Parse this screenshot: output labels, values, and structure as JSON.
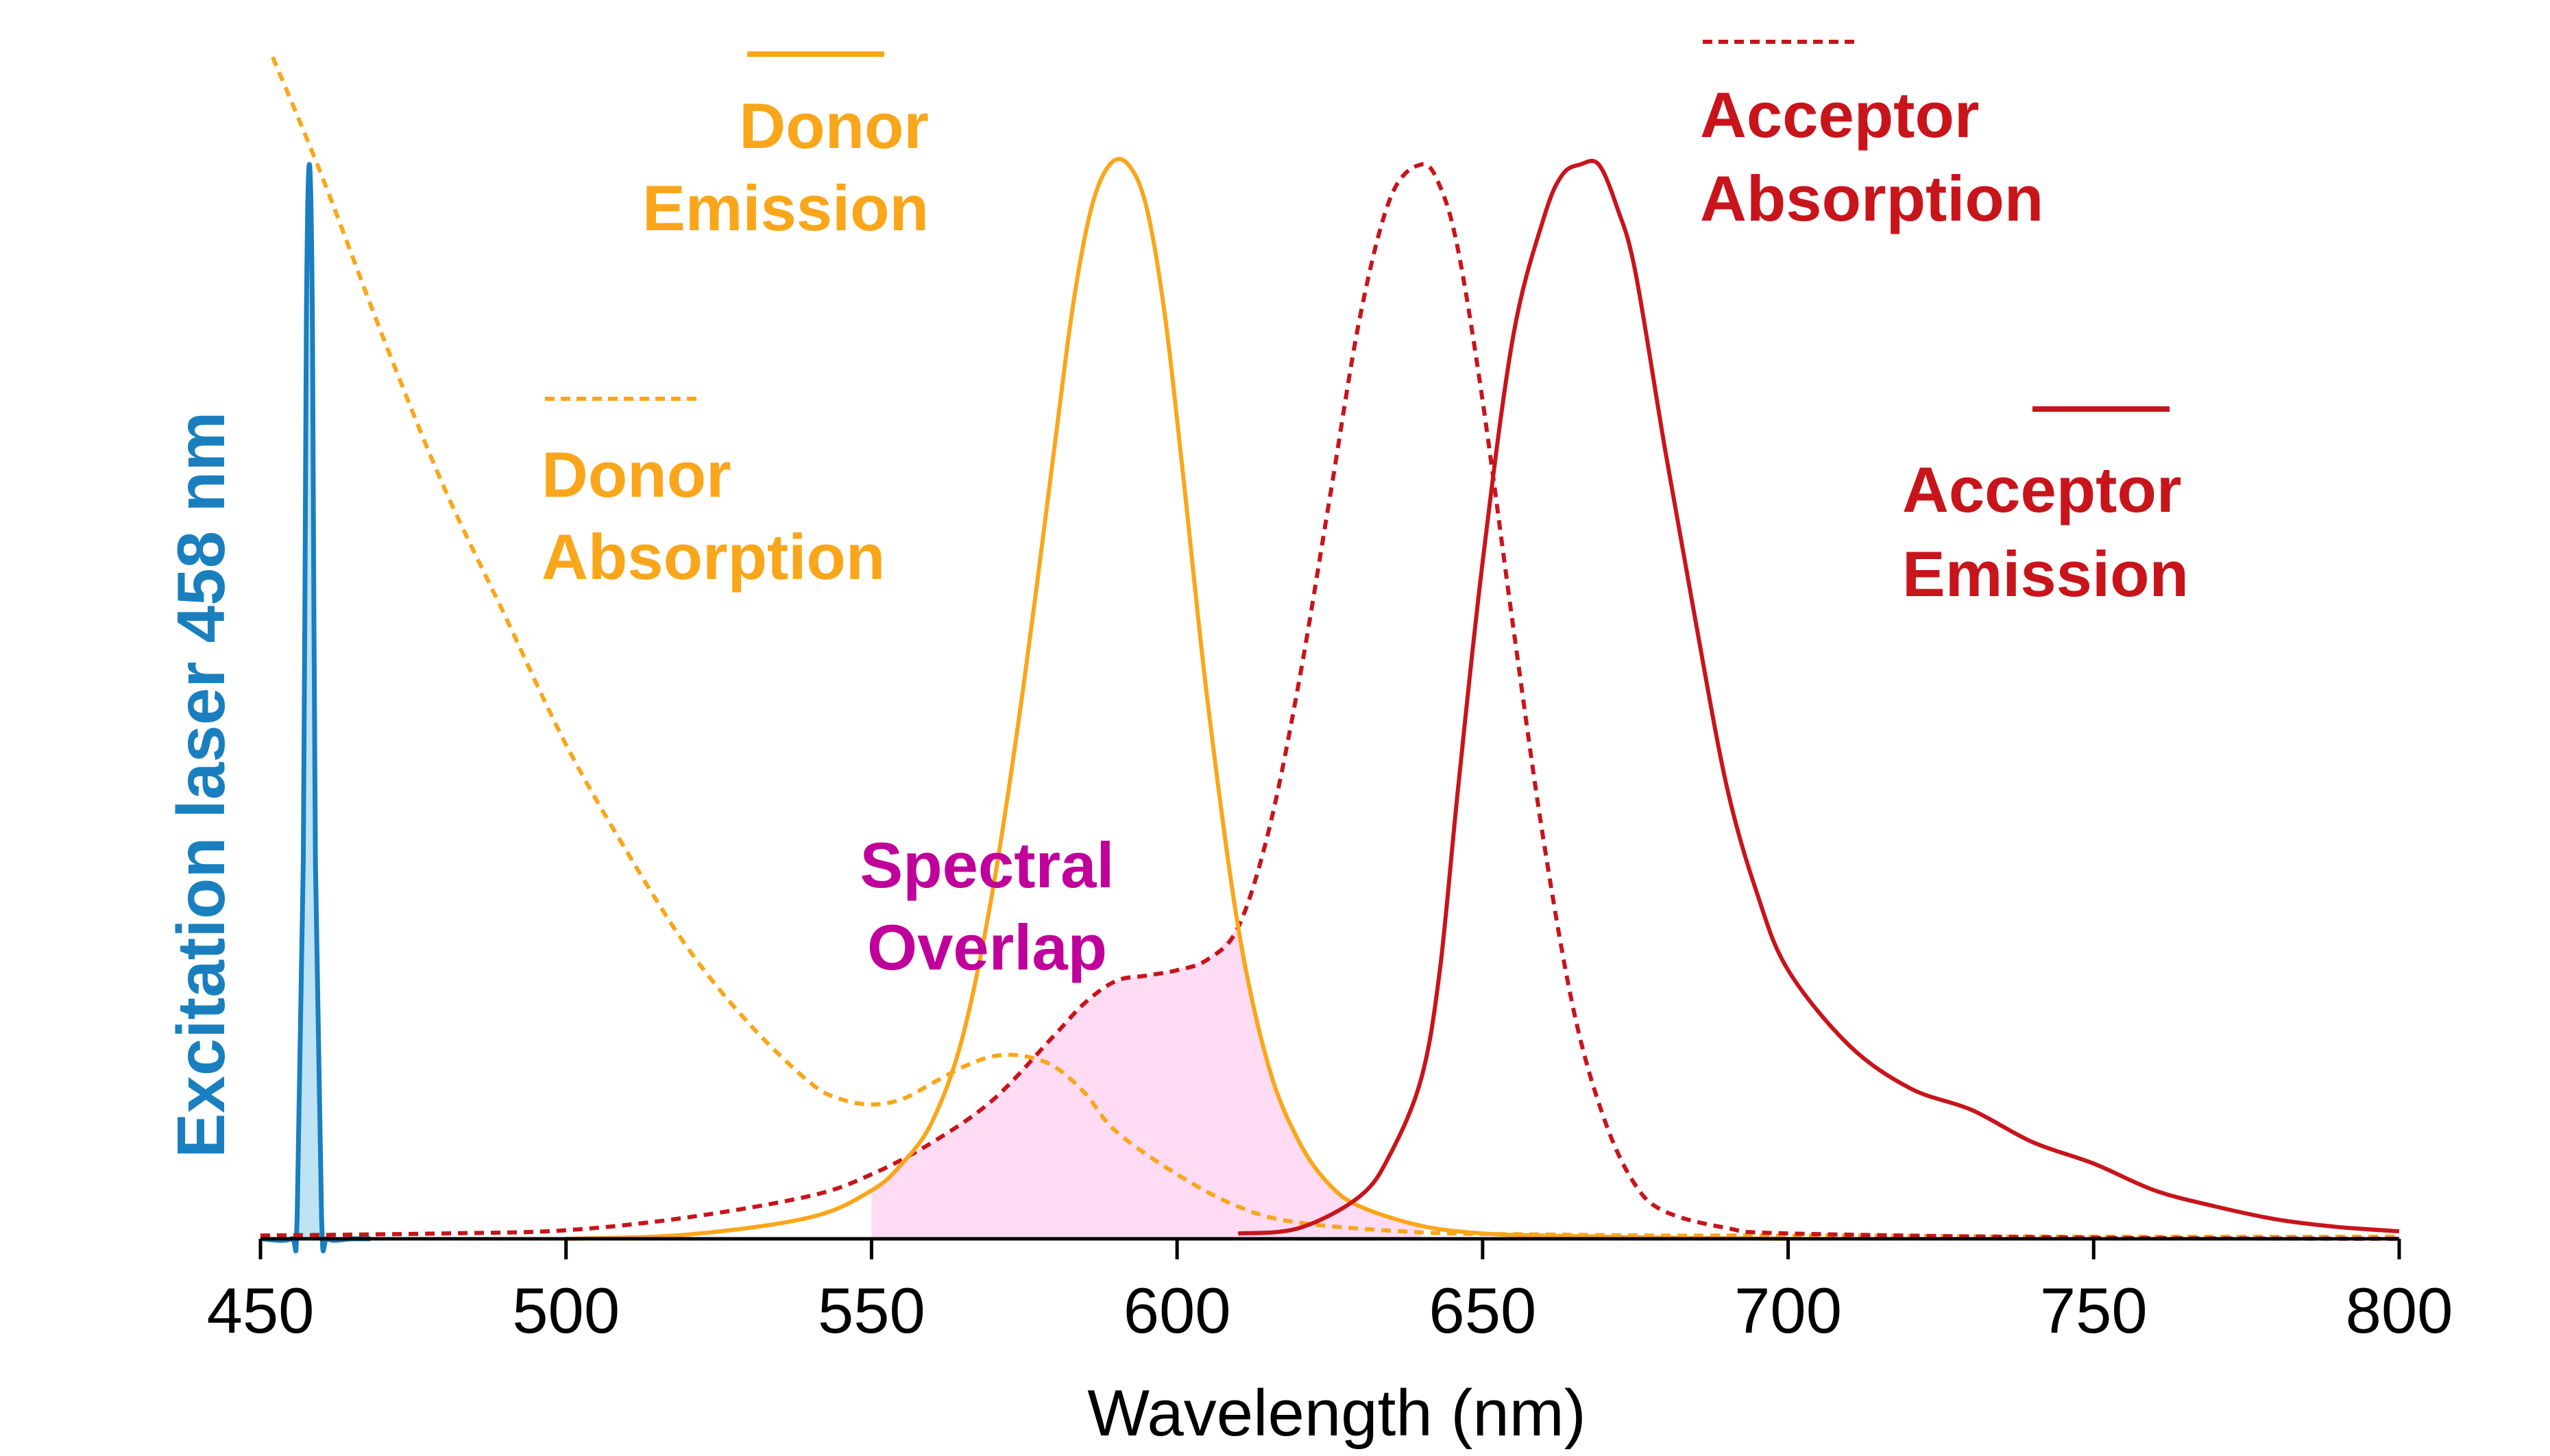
{
  "chart_data": {
    "type": "line",
    "title": "",
    "xlabel": "Wavelength (nm)",
    "ylabel": "Excitation laser 458 nm",
    "xlim": [
      450,
      800
    ],
    "ylim": [
      0,
      1
    ],
    "x_ticks": [
      450,
      500,
      550,
      600,
      650,
      700,
      750,
      800
    ],
    "grid": false,
    "colors": {
      "donor": "#FAA61A",
      "acceptor": "#C8141B",
      "laser": "#1A7FBE",
      "laser_fill": "#BDE3F5",
      "overlap_fill": "#FFDCF4",
      "overlap_text": "#C0009A",
      "axis": "#000000"
    },
    "labels": {
      "donor_emission": [
        "Donor",
        "Emission"
      ],
      "donor_absorption": [
        "Donor",
        "Absorption"
      ],
      "acceptor_absorption": [
        "Acceptor",
        "Absorption"
      ],
      "acceptor_emission": [
        "Acceptor",
        "Emission"
      ],
      "overlap": [
        "Spectral",
        "Overlap"
      ]
    },
    "series": [
      {
        "name": "Excitation laser 458 nm",
        "style": "solid-filled",
        "color_key": "laser",
        "x": [
          450,
          455,
          456,
          457,
          457.5,
          458,
          458.5,
          459,
          460,
          461,
          465,
          468
        ],
        "y": [
          0,
          0,
          0.02,
          0.35,
          0.85,
          1.0,
          0.85,
          0.35,
          0.02,
          0,
          0,
          0
        ]
      },
      {
        "name": "Donor Absorption",
        "style": "dashed",
        "color_key": "donor",
        "x": [
          452,
          460,
          470,
          480,
          490,
          500,
          510,
          520,
          530,
          540,
          545,
          550,
          555,
          560,
          565,
          570,
          575,
          580,
          585,
          590,
          600,
          610,
          620,
          640,
          660,
          680,
          700,
          750,
          800
        ],
        "y": [
          1.1,
          0.99,
          0.84,
          0.7,
          0.58,
          0.46,
          0.36,
          0.27,
          0.2,
          0.145,
          0.13,
          0.125,
          0.13,
          0.145,
          0.16,
          0.17,
          0.17,
          0.16,
          0.135,
          0.1,
          0.06,
          0.03,
          0.015,
          0.006,
          0.004,
          0.003,
          0.003,
          0.002,
          0.002
        ]
      },
      {
        "name": "Donor Emission",
        "style": "solid",
        "color_key": "donor",
        "x": [
          500,
          520,
          540,
          550,
          555,
          560,
          565,
          570,
          575,
          580,
          583,
          586,
          589,
          592,
          595,
          598,
          601,
          605,
          610,
          615,
          620,
          625,
          630,
          640,
          650,
          660,
          670,
          680,
          700
        ],
        "y": [
          0.0,
          0.004,
          0.02,
          0.045,
          0.07,
          0.11,
          0.19,
          0.33,
          0.52,
          0.74,
          0.87,
          0.96,
          1.0,
          1.0,
          0.96,
          0.86,
          0.71,
          0.5,
          0.29,
          0.16,
          0.09,
          0.05,
          0.03,
          0.012,
          0.005,
          0.003,
          0.002,
          0.001,
          0.0
        ]
      },
      {
        "name": "Acceptor Absorption",
        "style": "dashed",
        "color_key": "acceptor",
        "x": [
          450,
          480,
          500,
          520,
          540,
          550,
          560,
          570,
          580,
          585,
          590,
          595,
          600,
          605,
          610,
          615,
          620,
          625,
          630,
          635,
          640,
          643,
          646,
          650,
          655,
          660,
          665,
          670,
          675,
          680,
          690,
          700,
          750,
          800
        ],
        "y": [
          0.003,
          0.005,
          0.008,
          0.02,
          0.04,
          0.06,
          0.09,
          0.13,
          0.19,
          0.22,
          0.24,
          0.245,
          0.25,
          0.26,
          0.29,
          0.38,
          0.52,
          0.69,
          0.86,
          0.97,
          1.0,
          0.98,
          0.92,
          0.78,
          0.57,
          0.37,
          0.21,
          0.11,
          0.05,
          0.025,
          0.01,
          0.005,
          0.001,
          0.0
        ]
      },
      {
        "name": "Acceptor Emission",
        "style": "solid",
        "color_key": "acceptor",
        "x": [
          610,
          620,
          630,
          635,
          640,
          643,
          646,
          650,
          655,
          660,
          663,
          666,
          669,
          672,
          675,
          680,
          685,
          690,
          695,
          700,
          710,
          720,
          730,
          740,
          750,
          760,
          770,
          780,
          790,
          800
        ],
        "y": [
          0.005,
          0.01,
          0.04,
          0.08,
          0.15,
          0.25,
          0.42,
          0.63,
          0.84,
          0.95,
          0.99,
          1.0,
          1.0,
          0.96,
          0.9,
          0.73,
          0.57,
          0.42,
          0.32,
          0.25,
          0.18,
          0.14,
          0.12,
          0.09,
          0.07,
          0.045,
          0.03,
          0.018,
          0.011,
          0.007
        ]
      }
    ],
    "overlap_range": [
      550,
      615
    ]
  }
}
